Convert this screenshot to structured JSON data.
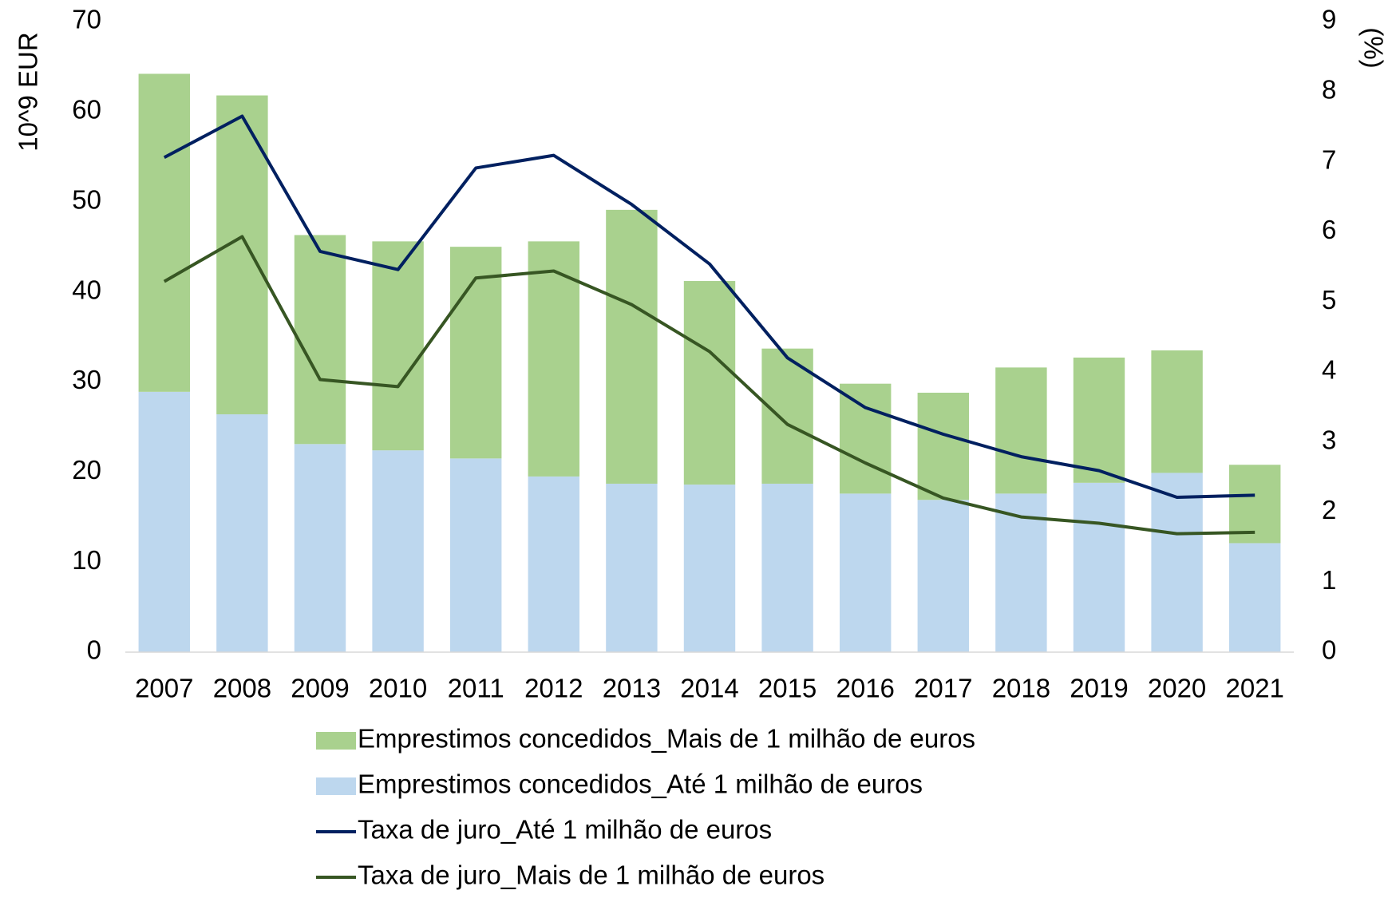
{
  "chart_data": {
    "type": "bar_line",
    "y_label": "10^9 EUR",
    "y2_label": "(%)",
    "categories": [
      "2007",
      "2008",
      "2009",
      "2010",
      "2011",
      "2012",
      "2013",
      "2014",
      "2015",
      "2016",
      "2017",
      "2018",
      "2019",
      "2020",
      "2021"
    ],
    "series": [
      {
        "name": "Emprestimos concedidos_Mais de 1 milhão de euros",
        "type": "bar",
        "stack": "s",
        "color": "#a9d18e",
        "values": [
          35.3,
          35.4,
          23.2,
          23.2,
          23.5,
          26.1,
          30.4,
          22.6,
          15.0,
          12.2,
          11.9,
          14.0,
          13.9,
          13.6,
          8.7
        ]
      },
      {
        "name": "Emprestimos concedidos_Até 1 milhão de euros",
        "type": "bar",
        "stack": "s",
        "color": "#bdd7ee",
        "values": [
          28.9,
          26.4,
          23.1,
          22.4,
          21.5,
          19.5,
          18.7,
          18.6,
          18.7,
          17.6,
          16.9,
          17.6,
          18.8,
          19.9,
          12.1
        ]
      },
      {
        "name": "Taxa de juro_Até 1 milhão de euros",
        "type": "line",
        "axis": "y2",
        "color": "#002060",
        "values": [
          7.06,
          7.65,
          5.72,
          5.46,
          6.91,
          7.09,
          6.39,
          5.54,
          4.2,
          3.49,
          3.11,
          2.79,
          2.59,
          2.21,
          2.24
        ]
      },
      {
        "name": "Taxa de juro_Mais de 1 milhão de euros",
        "type": "line",
        "axis": "y2",
        "color": "#375623",
        "values": [
          5.29,
          5.93,
          3.89,
          3.79,
          5.34,
          5.44,
          4.96,
          4.29,
          3.25,
          2.7,
          2.2,
          1.93,
          1.84,
          1.69,
          1.71
        ]
      }
    ],
    "ylim": [
      0,
      70
    ],
    "yticks": [
      0,
      10,
      20,
      30,
      40,
      50,
      60,
      70
    ],
    "y2lim": [
      0,
      9
    ],
    "y2ticks": [
      0,
      1,
      2,
      3,
      4,
      5,
      6,
      7,
      8,
      9
    ],
    "legend": "bottom",
    "grid": false
  }
}
